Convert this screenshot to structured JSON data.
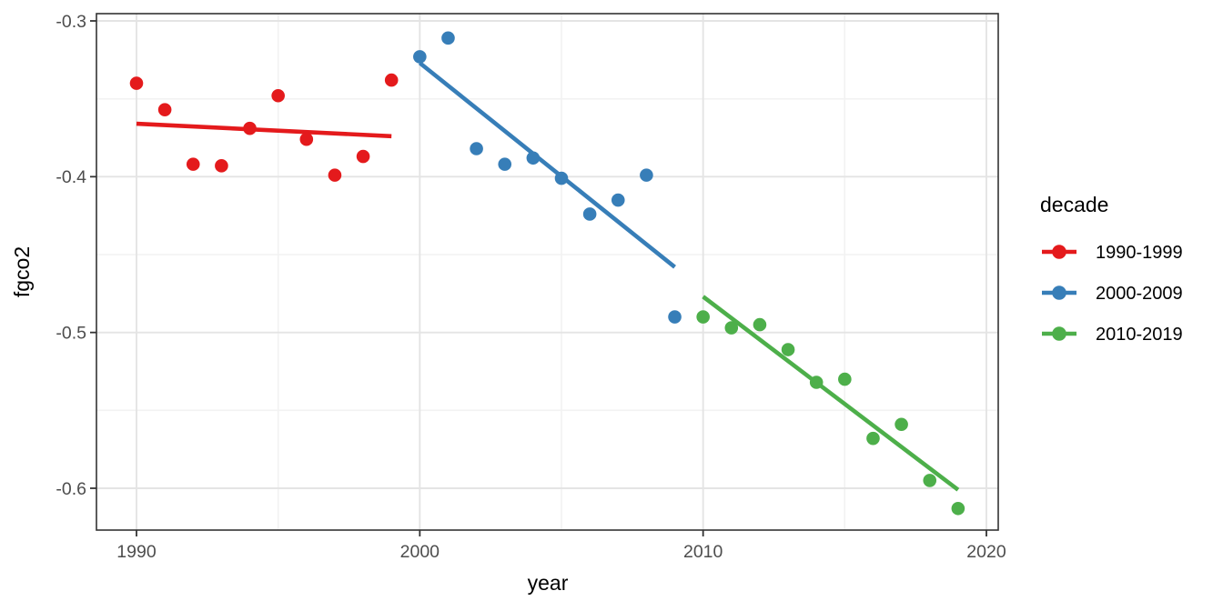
{
  "chart_data": {
    "type": "scatter",
    "title": "",
    "xlabel": "year",
    "ylabel": "fgco2",
    "xlim": [
      1988.6,
      2020.5
    ],
    "ylim": [
      -0.627,
      -0.295
    ],
    "x_ticks": [
      1990,
      2000,
      2010,
      2020
    ],
    "x_tick_labels": [
      "1990",
      "2000",
      "2010",
      "2020"
    ],
    "x_minor_ticks": [
      1995,
      2005,
      2015
    ],
    "y_ticks": [
      -0.3,
      -0.4,
      -0.5,
      -0.6
    ],
    "y_tick_labels": [
      "-0.3",
      "-0.4",
      "-0.5",
      "-0.6"
    ],
    "y_minor_ticks": [
      -0.35,
      -0.45,
      -0.55
    ],
    "grid": true,
    "legend": {
      "title": "decade",
      "position": "right"
    },
    "series": [
      {
        "name": "1990-1999",
        "color": "#E41A1C",
        "points": [
          [
            1990,
            -0.34
          ],
          [
            1991,
            -0.357
          ],
          [
            1992,
            -0.392
          ],
          [
            1993,
            -0.393
          ],
          [
            1994,
            -0.369
          ],
          [
            1995,
            -0.348
          ],
          [
            1996,
            -0.376
          ],
          [
            1997,
            -0.399
          ],
          [
            1998,
            -0.387
          ],
          [
            1999,
            -0.338
          ]
        ],
        "trend": [
          [
            1990,
            -0.366
          ],
          [
            1999,
            -0.374
          ]
        ]
      },
      {
        "name": "2000-2009",
        "color": "#377EB8",
        "points": [
          [
            2000,
            -0.323
          ],
          [
            2001,
            -0.311
          ],
          [
            2002,
            -0.382
          ],
          [
            2003,
            -0.392
          ],
          [
            2004,
            -0.388
          ],
          [
            2005,
            -0.401
          ],
          [
            2006,
            -0.424
          ],
          [
            2007,
            -0.415
          ],
          [
            2008,
            -0.399
          ],
          [
            2009,
            -0.49
          ]
        ],
        "trend": [
          [
            2000,
            -0.327
          ],
          [
            2009,
            -0.458
          ]
        ]
      },
      {
        "name": "2010-2019",
        "color": "#4DAF4A",
        "points": [
          [
            2010,
            -0.49
          ],
          [
            2011,
            -0.497
          ],
          [
            2012,
            -0.495
          ],
          [
            2013,
            -0.511
          ],
          [
            2014,
            -0.532
          ],
          [
            2015,
            -0.53
          ],
          [
            2016,
            -0.568
          ],
          [
            2017,
            -0.559
          ],
          [
            2018,
            -0.595
          ],
          [
            2019,
            -0.613
          ]
        ],
        "trend": [
          [
            2010,
            -0.477
          ],
          [
            2019,
            -0.601
          ]
        ]
      }
    ]
  },
  "theme": {
    "background": "#FFFFFF",
    "panel_background": "#FFFFFF",
    "panel_border": "#333333",
    "grid_major": "#E4E4E4",
    "grid_minor": "#F2F2F2",
    "tick_color": "#333333",
    "tick_label_color": "#4D4D4D",
    "axis_title_color": "#000000",
    "legend_text_color": "#000000"
  }
}
